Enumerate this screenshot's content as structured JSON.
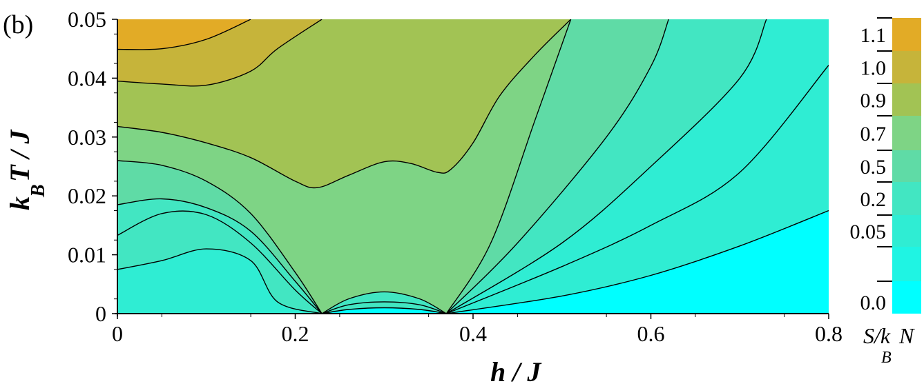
{
  "panel_label": "(b)",
  "colorbar": {
    "title_main": "S/k",
    "title_sub": "B",
    "title_tail": "N",
    "levels": [
      {
        "label": "0.0",
        "color": "#00ffff"
      },
      {
        "label": "",
        "color": "#1ff4e3"
      },
      {
        "label": "0.05",
        "color": "#2fedd3"
      },
      {
        "label": "0.2",
        "color": "#42e6c2"
      },
      {
        "label": "0.5",
        "color": "#5fdba6"
      },
      {
        "label": "0.7",
        "color": "#7ed485"
      },
      {
        "label": "0.9",
        "color": "#a2c354"
      },
      {
        "label": "1.0",
        "color": "#c6b43a"
      },
      {
        "label": "1.1",
        "color": "#e2ab26"
      },
      {
        "label": "",
        "color": "#ffa000"
      }
    ]
  },
  "chart_data": {
    "type": "heatmap",
    "title": "",
    "xlabel": "h / J",
    "ylabel_main": "k",
    "ylabel_sub": "B",
    "ylabel_tail": "T / J",
    "xlim": [
      0,
      0.8
    ],
    "ylim": [
      0,
      0.05
    ],
    "x_ticks": [
      "0",
      "0.2",
      "0.4",
      "0.6",
      "0.8"
    ],
    "y_ticks": [
      "0",
      "0.01",
      "0.02",
      "0.03",
      "0.04",
      "0.05"
    ],
    "z_label": "S/k_B N",
    "contour_levels": [
      0.0,
      0.05,
      0.2,
      0.5,
      0.7,
      0.9,
      1.0,
      1.1
    ],
    "critical_fields": [
      0.23,
      0.37
    ],
    "contours": [
      {
        "level": "top-left-1",
        "points": [
          [
            0,
            0.0449
          ],
          [
            0.05,
            0.045
          ],
          [
            0.1,
            0.0466
          ],
          [
            0.15,
            0.05
          ]
        ]
      },
      {
        "level": "top-left-2",
        "points": [
          [
            0,
            0.0395
          ],
          [
            0.05,
            0.039
          ],
          [
            0.1,
            0.0388
          ],
          [
            0.15,
            0.0412
          ],
          [
            0.18,
            0.045
          ],
          [
            0.23,
            0.05
          ]
        ]
      },
      {
        "level": "upper-valley",
        "points": [
          [
            0,
            0.0318
          ],
          [
            0.05,
            0.0308
          ],
          [
            0.1,
            0.029
          ],
          [
            0.15,
            0.0265
          ],
          [
            0.2,
            0.0225
          ],
          [
            0.225,
            0.0214
          ],
          [
            0.26,
            0.0235
          ],
          [
            0.3,
            0.0258
          ],
          [
            0.33,
            0.0255
          ],
          [
            0.36,
            0.024
          ],
          [
            0.375,
            0.0245
          ],
          [
            0.4,
            0.029
          ],
          [
            0.43,
            0.037
          ],
          [
            0.47,
            0.044
          ],
          [
            0.51,
            0.05
          ]
        ]
      },
      {
        "level": "left-dome-1",
        "points": [
          [
            0,
            0.026
          ],
          [
            0.05,
            0.0252
          ],
          [
            0.1,
            0.0225
          ],
          [
            0.15,
            0.017
          ],
          [
            0.2,
            0.007
          ],
          [
            0.23,
            0.0
          ]
        ]
      },
      {
        "level": "left-dome-2",
        "points": [
          [
            0,
            0.0185
          ],
          [
            0.05,
            0.0195
          ],
          [
            0.1,
            0.018
          ],
          [
            0.15,
            0.014
          ],
          [
            0.2,
            0.0055
          ],
          [
            0.23,
            0.0
          ]
        ]
      },
      {
        "level": "left-dome-3",
        "points": [
          [
            0,
            0.0133
          ],
          [
            0.05,
            0.017
          ],
          [
            0.1,
            0.0168
          ],
          [
            0.15,
            0.012
          ],
          [
            0.2,
            0.004
          ],
          [
            0.23,
            0.0
          ]
        ]
      },
      {
        "level": "left-dome-4",
        "points": [
          [
            0,
            0.0075
          ],
          [
            0.05,
            0.009
          ],
          [
            0.1,
            0.011
          ],
          [
            0.15,
            0.009
          ],
          [
            0.18,
            0.002
          ],
          [
            0.23,
            0.0
          ]
        ]
      },
      {
        "level": "middle-dome-1",
        "points": [
          [
            0.23,
            0.0
          ],
          [
            0.26,
            0.0025
          ],
          [
            0.3,
            0.0037
          ],
          [
            0.34,
            0.0025
          ],
          [
            0.37,
            0.0
          ]
        ]
      },
      {
        "level": "middle-dome-2",
        "points": [
          [
            0.23,
            0.0
          ],
          [
            0.26,
            0.0015
          ],
          [
            0.3,
            0.002
          ],
          [
            0.34,
            0.0015
          ],
          [
            0.37,
            0.0
          ]
        ]
      },
      {
        "level": "middle-dome-3",
        "points": [
          [
            0.23,
            0.0
          ],
          [
            0.26,
            0.0007
          ],
          [
            0.3,
            0.001
          ],
          [
            0.34,
            0.0007
          ],
          [
            0.37,
            0.0
          ]
        ]
      },
      {
        "level": "right-fan-1",
        "points": [
          [
            0.37,
            0.0
          ],
          [
            0.42,
            0.012
          ],
          [
            0.47,
            0.033
          ],
          [
            0.51,
            0.05
          ]
        ]
      },
      {
        "level": "right-fan-2",
        "points": [
          [
            0.37,
            0.0
          ],
          [
            0.45,
            0.012
          ],
          [
            0.55,
            0.03
          ],
          [
            0.6,
            0.042
          ],
          [
            0.62,
            0.05
          ]
        ]
      },
      {
        "level": "right-fan-3",
        "points": [
          [
            0.37,
            0.0
          ],
          [
            0.5,
            0.012
          ],
          [
            0.6,
            0.025
          ],
          [
            0.7,
            0.04
          ],
          [
            0.73,
            0.05
          ]
        ]
      },
      {
        "level": "right-fan-4",
        "points": [
          [
            0.37,
            0.0
          ],
          [
            0.5,
            0.008
          ],
          [
            0.6,
            0.015
          ],
          [
            0.7,
            0.024
          ],
          [
            0.8,
            0.0422
          ]
        ]
      },
      {
        "level": "right-fan-5",
        "points": [
          [
            0.37,
            0.0
          ],
          [
            0.5,
            0.003
          ],
          [
            0.6,
            0.0065
          ],
          [
            0.7,
            0.0115
          ],
          [
            0.8,
            0.0175
          ]
        ]
      }
    ],
    "regions": [
      {
        "name": "band-top-left-orange",
        "color": "#e2ab26"
      },
      {
        "name": "band-upper-olive",
        "color": "#c6b43a"
      },
      {
        "name": "band-yellow-green",
        "color": "#a2c354"
      },
      {
        "name": "band-green",
        "color": "#7ed485"
      },
      {
        "name": "band-teal",
        "color": "#5fdba6"
      },
      {
        "name": "band-aqua",
        "color": "#42e6c2"
      },
      {
        "name": "band-cyan-light",
        "color": "#2fedd3"
      },
      {
        "name": "band-cyan",
        "color": "#00ffff"
      }
    ]
  }
}
